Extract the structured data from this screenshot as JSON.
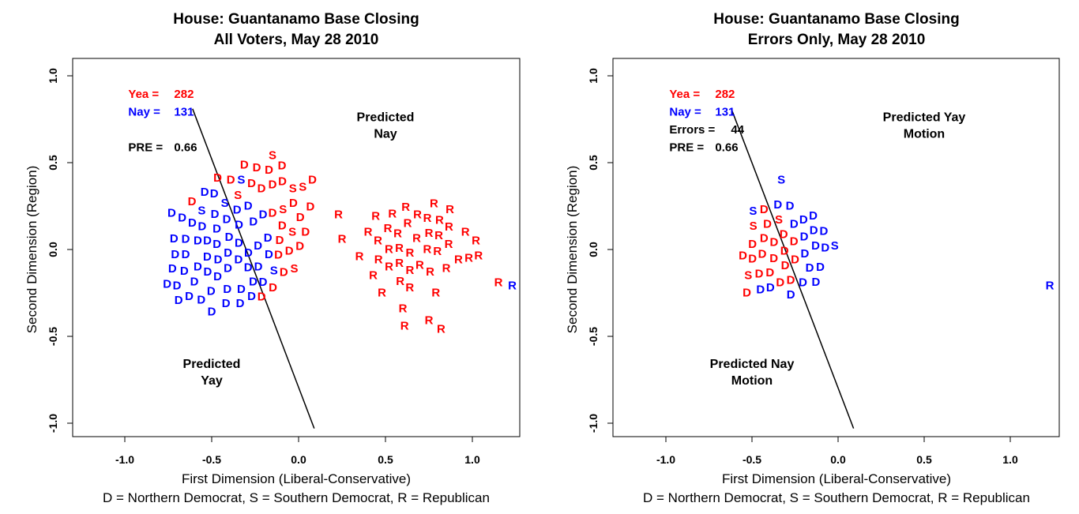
{
  "colors": {
    "red": "#ff0000",
    "blue": "#0000ff",
    "black": "#000000"
  },
  "chart_data": [
    {
      "type": "scatter",
      "title": [
        "House: Guantanamo Base Closing",
        "All Voters, May 28 2010"
      ],
      "xlabel": "First Dimension (Liberal-Conservative)",
      "ylabel": "Second Dimension (Region)",
      "footnote": "D = Northern Democrat, S = Southern Democrat, R = Republican",
      "xlim": [
        -1.3,
        1.28
      ],
      "ylim": [
        -1.1,
        1.1
      ],
      "xticks": [
        "-1.0",
        "-0.5",
        "0.0",
        "0.5",
        "1.0"
      ],
      "yticks": [
        "-1.0",
        "-0.5",
        "0.0",
        "0.5",
        "1.0"
      ],
      "stats": [
        {
          "label": "Yea =",
          "value": "282",
          "color": "red"
        },
        {
          "label": "Nay =",
          "value": "131",
          "color": "blue"
        },
        {
          "label": "",
          "value": "",
          "color": "black"
        },
        {
          "label": "PRE =",
          "value": "0.66",
          "color": "black"
        }
      ],
      "regions": [
        {
          "lines": [
            "Predicted",
            "Nay"
          ],
          "x": 0.5,
          "y": 0.72
        },
        {
          "lines": [
            "Predicted",
            "Yay"
          ],
          "x": -0.5,
          "y": -0.7
        }
      ],
      "cutting_line": [
        [
          -0.61,
          0.81
        ],
        [
          0.09,
          -1.03
        ]
      ],
      "points": [
        [
          "D",
          "blue",
          -0.73,
          0.21
        ],
        [
          "D",
          "blue",
          -0.54,
          0.33
        ],
        [
          "D",
          "blue",
          -0.54,
          0.32
        ],
        [
          "D",
          "blue",
          -0.65,
          0.06
        ],
        [
          "D",
          "blue",
          -0.71,
          -0.03
        ],
        [
          "D",
          "blue",
          -0.58,
          0.05
        ],
        [
          "D",
          "blue",
          -0.6,
          0.05
        ],
        [
          "D",
          "blue",
          -0.67,
          -0.03
        ],
        [
          "D",
          "blue",
          -0.7,
          -0.21
        ],
        [
          "D",
          "blue",
          -0.69,
          -0.28
        ],
        [
          "D",
          "blue",
          -0.65,
          -0.27
        ],
        [
          "D",
          "blue",
          -0.6,
          -0.2
        ],
        [
          "D",
          "blue",
          -0.56,
          -0.29
        ],
        [
          "D",
          "blue",
          -0.5,
          -0.36
        ],
        [
          "D",
          "blue",
          -0.51,
          -0.24
        ],
        [
          "D",
          "blue",
          -0.41,
          -0.23
        ],
        [
          "D",
          "blue",
          -0.33,
          -0.23
        ],
        [
          "D",
          "blue",
          -0.37,
          -0.23
        ],
        [
          "D",
          "blue",
          -0.58,
          -0.1
        ],
        [
          "D",
          "blue",
          -0.53,
          -0.13
        ],
        [
          "D",
          "blue",
          -0.47,
          -0.06
        ],
        [
          "D",
          "blue",
          -0.42,
          -0.11
        ],
        [
          "D",
          "blue",
          -0.38,
          -0.06
        ],
        [
          "D",
          "blue",
          -0.33,
          -0.02
        ],
        [
          "D",
          "blue",
          -0.29,
          -0.09
        ],
        [
          "D",
          "blue",
          -0.24,
          0.02
        ],
        [
          "D",
          "blue",
          -0.4,
          0.07
        ],
        [
          "D",
          "blue",
          -0.35,
          0.14
        ],
        [
          "D",
          "blue",
          -0.29,
          0.25
        ],
        [
          "D",
          "blue",
          -0.49,
          0.03
        ],
        [
          "D",
          "blue",
          -0.44,
          -0.02
        ],
        [
          "D",
          "blue",
          -0.54,
          -0.16
        ],
        [
          "D",
          "blue",
          -0.49,
          -0.18
        ],
        [
          "D",
          "blue",
          -0.4,
          -0.15
        ],
        [
          "D",
          "blue",
          -0.63,
          -0.06
        ],
        [
          "D",
          "blue",
          -0.33,
          -0.18
        ],
        [
          "D",
          "blue",
          -0.47,
          0.05
        ],
        [
          "D",
          "blue",
          -0.31,
          0.07
        ],
        [
          "D",
          "blue",
          -0.26,
          0.16
        ],
        [
          "D",
          "blue",
          -0.45,
          -0.1
        ],
        [
          "D",
          "blue",
          -0.56,
          -0.07
        ],
        [
          "D",
          "blue",
          -0.52,
          -0.02
        ],
        [
          "D",
          "blue",
          -0.43,
          0.12
        ],
        [
          "D",
          "blue",
          -0.38,
          0.1
        ],
        [
          "D",
          "blue",
          -0.36,
          -0.12
        ],
        [
          "D",
          "blue",
          -0.47,
          -0.15
        ],
        [
          "D",
          "blue",
          -0.5,
          -0.09
        ],
        [
          "D",
          "blue",
          -0.28,
          -0.03
        ],
        [
          "D",
          "blue",
          -0.3,
          0.2
        ],
        [
          "D",
          "blue",
          -0.42,
          0.0
        ],
        [
          "D",
          "blue",
          -0.35,
          0.03
        ],
        [
          "D",
          "blue",
          -0.6,
          -0.13
        ],
        [
          "D",
          "blue",
          -0.44,
          -0.19
        ],
        [
          "D",
          "blue",
          -0.55,
          0.0
        ],
        [
          "S",
          "blue",
          -0.33,
          0.4
        ],
        [
          "S",
          "blue",
          -0.45,
          0.21
        ],
        [
          "S",
          "blue",
          -0.47,
          0.0
        ],
        [
          "S",
          "blue",
          -0.38,
          -0.02
        ],
        [
          "S",
          "red",
          -0.15,
          0.54
        ],
        [
          "D",
          "red",
          -0.17,
          0.47
        ],
        [
          "D",
          "red",
          -0.39,
          0.4
        ],
        [
          "D",
          "red",
          -0.27,
          0.38
        ],
        [
          "S",
          "red",
          -0.32,
          0.34
        ],
        [
          "D",
          "red",
          -0.22,
          0.35
        ],
        [
          "D",
          "red",
          -0.15,
          0.38
        ],
        [
          "D",
          "red",
          -0.1,
          0.39
        ],
        [
          "S",
          "red",
          -0.06,
          0.35
        ],
        [
          "S",
          "red",
          -0.01,
          0.36
        ],
        [
          "D",
          "red",
          0.08,
          0.4
        ],
        [
          "D",
          "red",
          -0.03,
          0.3
        ],
        [
          "D",
          "red",
          0.01,
          0.19
        ],
        [
          "D",
          "red",
          0.04,
          0.1
        ],
        [
          "S",
          "red",
          -0.09,
          0.23
        ],
        [
          "D",
          "red",
          -0.15,
          0.21
        ],
        [
          "D",
          "red",
          -0.2,
          0.26
        ],
        [
          "D",
          "red",
          -0.24,
          0.21
        ],
        [
          "S",
          "red",
          -0.22,
          0.1
        ],
        [
          "D",
          "red",
          -0.28,
          0.1
        ],
        [
          "D",
          "red",
          -0.17,
          0.3
        ],
        [
          "D",
          "red",
          -0.12,
          0.28
        ],
        [
          "D",
          "red",
          -0.43,
          0.23
        ],
        [
          "D",
          "red",
          -0.31,
          0.16
        ],
        [
          "D",
          "red",
          -0.26,
          0.03
        ],
        [
          "D",
          "red",
          -0.2,
          0.12
        ],
        [
          "S",
          "red",
          -0.19,
          0.08
        ],
        [
          "D",
          "red",
          -0.13,
          0.33
        ],
        [
          "D",
          "red",
          -0.21,
          0.31
        ],
        [
          "D",
          "red",
          -0.33,
          0.0
        ],
        [
          "D",
          "red",
          -0.36,
          0.09
        ],
        [
          "D",
          "red",
          -0.3,
          -0.05
        ],
        [
          "R",
          "red",
          0.23,
          0.2
        ],
        [
          "R",
          "red",
          0.25,
          0.06
        ],
        [
          "R",
          "red",
          0.35,
          -0.04
        ],
        [
          "R",
          "red",
          0.43,
          -0.15
        ],
        [
          "R",
          "red",
          0.48,
          -0.25
        ],
        [
          "R",
          "red",
          0.6,
          -0.34
        ],
        [
          "R",
          "red",
          0.61,
          -0.44
        ],
        [
          "R",
          "red",
          0.75,
          -0.41
        ],
        [
          "R",
          "red",
          0.82,
          -0.46
        ],
        [
          "R",
          "red",
          0.79,
          -0.25
        ],
        [
          "R",
          "red",
          0.85,
          -0.11
        ],
        [
          "R",
          "red",
          0.96,
          0.1
        ],
        [
          "R",
          "red",
          1.0,
          0.05
        ],
        [
          "R",
          "red",
          0.98,
          -0.05
        ],
        [
          "R",
          "red",
          0.92,
          -0.06
        ],
        [
          "R",
          "red",
          1.15,
          -0.19
        ],
        [
          "R",
          "red",
          0.4,
          0.1
        ],
        [
          "R",
          "red",
          0.45,
          0.05
        ],
        [
          "R",
          "red",
          0.5,
          0.12
        ],
        [
          "R",
          "red",
          0.55,
          0.09
        ],
        [
          "R",
          "red",
          0.6,
          0.15
        ],
        [
          "R",
          "red",
          0.65,
          0.2
        ],
        [
          "R",
          "red",
          0.7,
          0.18
        ],
        [
          "R",
          "red",
          0.75,
          0.12
        ],
        [
          "R",
          "red",
          0.8,
          0.08
        ],
        [
          "R",
          "red",
          0.52,
          0.0
        ],
        [
          "R",
          "red",
          0.58,
          0.04
        ],
        [
          "R",
          "red",
          0.62,
          -0.02
        ],
        [
          "R",
          "red",
          0.68,
          0.05
        ],
        [
          "R",
          "red",
          0.72,
          0.0
        ],
        [
          "R",
          "red",
          0.78,
          -0.03
        ],
        [
          "R",
          "red",
          0.85,
          0.03
        ],
        [
          "R",
          "red",
          0.46,
          -0.06
        ],
        [
          "R",
          "red",
          0.5,
          -0.1
        ],
        [
          "R",
          "red",
          0.56,
          -0.08
        ],
        [
          "R",
          "red",
          0.62,
          -0.12
        ],
        [
          "R",
          "red",
          0.67,
          -0.09
        ],
        [
          "R",
          "red",
          0.73,
          -0.13
        ],
        [
          "R",
          "red",
          0.59,
          -0.18
        ],
        [
          "R",
          "red",
          0.64,
          -0.22
        ],
        [
          "R",
          "red",
          0.7,
          0.1
        ],
        [
          "R",
          "red",
          0.74,
          0.06
        ],
        [
          "R",
          "red",
          0.66,
          0.12
        ],
        [
          "R",
          "red",
          0.54,
          0.17
        ],
        [
          "R",
          "red",
          0.82,
          0.14
        ],
        [
          "R",
          "red",
          0.89,
          0.0
        ],
        [
          "R",
          "red",
          0.77,
          0.19
        ],
        [
          "R",
          "red",
          0.48,
          0.08
        ],
        [
          "R",
          "blue",
          1.23,
          -0.21
        ]
      ]
    },
    {
      "type": "scatter",
      "title": [
        "House: Guantanamo Base Closing",
        "Errors Only, May 28 2010"
      ],
      "xlabel": "First Dimension (Liberal-Conservative)",
      "ylabel": "Second Dimension (Region)",
      "footnote": "D = Northern Democrat, S = Southern Democrat, R = Republican",
      "xlim": [
        -1.3,
        1.28
      ],
      "ylim": [
        -1.1,
        1.1
      ],
      "xticks": [
        "-1.0",
        "-0.5",
        "0.0",
        "0.5",
        "1.0"
      ],
      "yticks": [
        "-1.0",
        "-0.5",
        "0.0",
        "0.5",
        "1.0"
      ],
      "stats": [
        {
          "label": "Yea =",
          "value": "282",
          "color": "red"
        },
        {
          "label": "Nay =",
          "value": "131",
          "color": "blue"
        },
        {
          "label": "Errors =",
          "value": "44",
          "color": "black"
        },
        {
          "label": "PRE =",
          "value": "0.66",
          "color": "black"
        }
      ],
      "regions": [
        {
          "lines": [
            "Predicted Yay",
            "Motion"
          ],
          "x": 0.5,
          "y": 0.72
        },
        {
          "lines": [
            "Predicted Nay",
            "Motion"
          ],
          "x": -0.5,
          "y": -0.7
        }
      ],
      "cutting_line": [
        [
          -0.62,
          0.81
        ],
        [
          0.09,
          -1.03
        ]
      ],
      "points": [
        [
          "D",
          "red",
          -0.43,
          0.23
        ],
        [
          "D",
          "red",
          -0.41,
          0.18
        ],
        [
          "D",
          "red",
          -0.43,
          0.09
        ],
        [
          "D",
          "red",
          -0.42,
          0.04
        ],
        [
          "D",
          "red",
          -0.4,
          0.02
        ],
        [
          "D",
          "red",
          -0.39,
          0.0
        ],
        [
          "D",
          "red",
          -0.38,
          -0.01
        ],
        [
          "D",
          "red",
          -0.37,
          -0.03
        ],
        [
          "D",
          "red",
          -0.41,
          -0.12
        ],
        [
          "D",
          "red",
          -0.39,
          -0.14
        ],
        [
          "D",
          "red",
          -0.37,
          -0.11
        ],
        [
          "D",
          "red",
          -0.36,
          -0.06
        ],
        [
          "D",
          "red",
          -0.53,
          -0.25
        ],
        [
          "D",
          "red",
          -0.39,
          0.05
        ],
        [
          "D",
          "red",
          -0.38,
          0.03
        ],
        [
          "D",
          "red",
          -0.4,
          -0.02
        ],
        [
          "D",
          "red",
          -0.38,
          -0.08
        ],
        [
          "D",
          "red",
          -0.36,
          0.01
        ],
        [
          "D",
          "red",
          -0.42,
          0.0
        ],
        [
          "S",
          "red",
          -0.41,
          0.1
        ],
        [
          "S",
          "red",
          -0.43,
          -0.04
        ],
        [
          "S",
          "red",
          -0.38,
          0.06
        ],
        [
          "D",
          "blue",
          -0.28,
          0.25
        ],
        [
          "D",
          "blue",
          -0.29,
          0.24
        ],
        [
          "D",
          "blue",
          -0.33,
          0.18
        ],
        [
          "D",
          "blue",
          -0.29,
          0.17
        ],
        [
          "D",
          "blue",
          -0.34,
          0.14
        ],
        [
          "D",
          "blue",
          -0.32,
          0.11
        ],
        [
          "D",
          "blue",
          -0.3,
          0.1
        ],
        [
          "D",
          "blue",
          -0.31,
          0.09
        ],
        [
          "D",
          "blue",
          -0.28,
          0.02
        ],
        [
          "D",
          "blue",
          -0.26,
          0.01
        ],
        [
          "D",
          "blue",
          -0.25,
          0.0
        ],
        [
          "D",
          "blue",
          -0.24,
          -0.01
        ],
        [
          "D",
          "blue",
          -0.27,
          -0.03
        ],
        [
          "D",
          "blue",
          -0.29,
          -0.02
        ],
        [
          "D",
          "blue",
          -0.31,
          -0.04
        ],
        [
          "D",
          "blue",
          -0.33,
          -0.05
        ],
        [
          "D",
          "blue",
          -0.3,
          0.0
        ],
        [
          "D",
          "blue",
          -0.26,
          0.04
        ],
        [
          "S",
          "blue",
          -0.33,
          0.4
        ],
        [
          "S",
          "blue",
          -0.33,
          0.12
        ],
        [
          "S",
          "blue",
          -0.26,
          0.02
        ],
        [
          "R",
          "blue",
          1.23,
          -0.21
        ]
      ]
    }
  ]
}
